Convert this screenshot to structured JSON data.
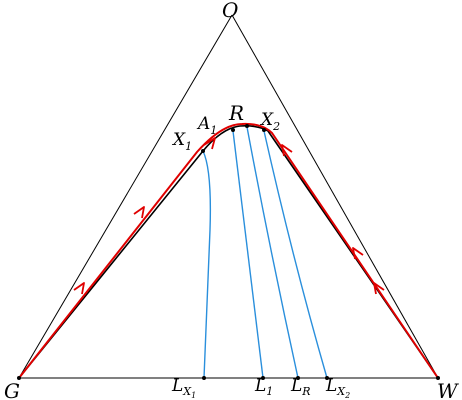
{
  "labels": {
    "O": "O",
    "G": "G",
    "W": "W",
    "R": "R",
    "A1": {
      "base": "A",
      "sub": "1"
    },
    "X1": {
      "base": "X",
      "sub": "1"
    },
    "X2": {
      "base": "X",
      "sub": "2"
    },
    "LX1": {
      "base": "L",
      "sub": "X",
      "subsub": "1"
    },
    "L1": {
      "base": "L",
      "sub": "1"
    },
    "LR": {
      "base": "L",
      "sub": "R"
    },
    "LX2": {
      "base": "L",
      "sub": "X",
      "subsub": "2"
    }
  },
  "colors": {
    "triangle": "#000000",
    "boundary_curve": "#e00000",
    "tie_lines": "#2a8fdc",
    "inner_curve": "#000000"
  }
}
